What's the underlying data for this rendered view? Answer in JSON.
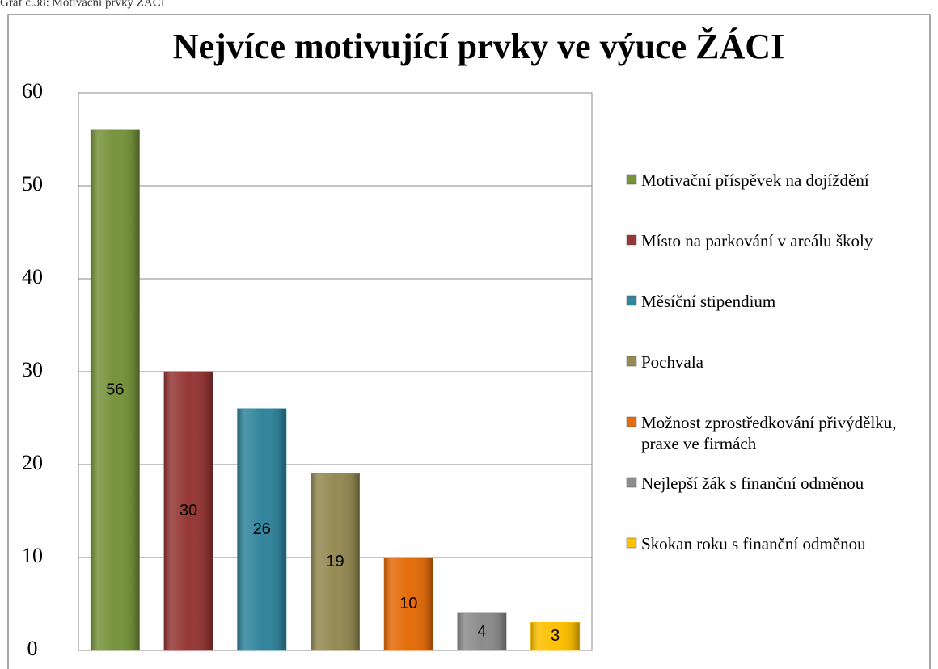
{
  "caption": "Graf č.38: Motivační prvky ŽÁCI",
  "chart_data": {
    "type": "bar",
    "title": "Nejvíce motivující prvky ve výuce ŽÁCI",
    "categories": [
      "Motivační příspěvek na dojíždění",
      "Místo na parkování v areálu školy",
      "Měsíční stipendium",
      "Pochvala",
      "Možnost zprostředkování přivýdělku, praxe ve firmách",
      "Nejlepší žák s finanční odměnou",
      "Skokan roku s finanční odměnou"
    ],
    "values": [
      56,
      30,
      26,
      19,
      10,
      4,
      3
    ],
    "colors": [
      "#77933c",
      "#953735",
      "#31859c",
      "#948a54",
      "#e46c0a",
      "#8c8c8c",
      "#ffc000"
    ],
    "ylim": [
      0,
      60
    ],
    "yticks": [
      0,
      10,
      20,
      30,
      40,
      50,
      60
    ],
    "grid": true,
    "legend": "right"
  }
}
